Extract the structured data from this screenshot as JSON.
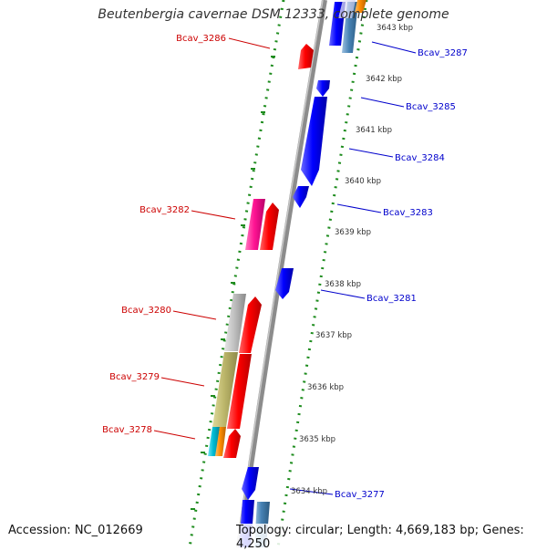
{
  "title": "Beutenbergia cavernae DSM 12333, complete genome",
  "footer": {
    "accession": "Accession: NC_012669",
    "topology": "Topology: circular; Length: 4,669,183 bp; Genes: 4,250"
  },
  "colors": {
    "backbone": "#8c8c8c",
    "tick": "#1e8c1e",
    "label_left": "#cc0000",
    "label_right": "#0000cc",
    "kbp_text": "#333333"
  },
  "kbp_labels": [
    "3643 kbp",
    "3642 kbp",
    "3641 kbp",
    "3640 kbp",
    "3639 kbp",
    "3638 kbp",
    "3637 kbp",
    "3636 kbp",
    "3635 kbp",
    "3634 kbp"
  ],
  "gene_labels_left": [
    "Bcav_3286",
    "Bcav_3282",
    "Bcav_3280",
    "Bcav_3279",
    "Bcav_3278"
  ],
  "gene_labels_right": [
    "Bcav_3287",
    "Bcav_3285",
    "Bcav_3284",
    "Bcav_3283",
    "Bcav_3281",
    "Bcav_3277"
  ],
  "features": [
    {
      "color": "#ff0000",
      "name": "red-gene"
    },
    {
      "color": "#0000ff",
      "name": "blue-gene"
    },
    {
      "color": "#ff1493",
      "name": "pink-gene"
    },
    {
      "color": "#c0c0c0",
      "name": "gray-gene"
    },
    {
      "color": "#bdb76b",
      "name": "khaki-gene"
    },
    {
      "color": "#00bcd4",
      "name": "cyan-gene"
    },
    {
      "color": "#ff8c00",
      "name": "orange-gene"
    },
    {
      "color": "#4682b4",
      "name": "steelblue-gene"
    }
  ]
}
